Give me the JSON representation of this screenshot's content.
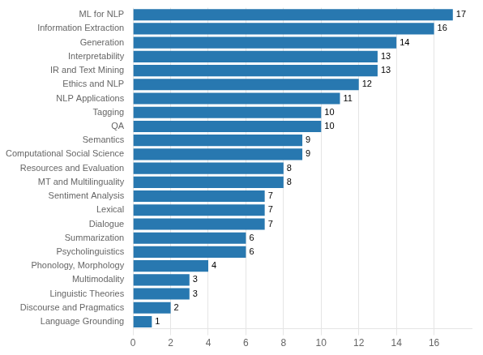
{
  "chart_data": {
    "type": "bar",
    "orientation": "horizontal",
    "categories": [
      "ML for NLP",
      "Information Extraction",
      "Generation",
      "Interpretability",
      "IR and Text Mining",
      "Ethics and NLP",
      "NLP Applications",
      "Tagging",
      "QA",
      "Semantics",
      "Computational Social Science",
      "Resources and Evaluation",
      "MT and Multilinguality",
      "Sentiment Analysis",
      "Lexical",
      "Dialogue",
      "Summarization",
      "Psycholinguistics",
      "Phonology, Morphology",
      "Multimodality",
      "Linguistic Theories",
      "Discourse and Pragmatics",
      "Language Grounding"
    ],
    "values": [
      17,
      16,
      14,
      13,
      13,
      12,
      11,
      10,
      10,
      9,
      9,
      8,
      8,
      7,
      7,
      7,
      6,
      6,
      4,
      3,
      3,
      2,
      1
    ],
    "color": "#2878b0",
    "xlim": [
      0,
      18
    ],
    "xticks": [
      0,
      2,
      4,
      6,
      8,
      10,
      12,
      14,
      16
    ],
    "grid": true,
    "data_labels": true
  }
}
